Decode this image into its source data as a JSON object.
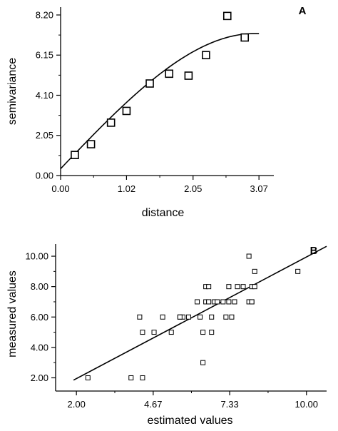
{
  "chart_data": [
    {
      "type": "scatter",
      "panel_label": "A",
      "xlabel": "distance",
      "ylabel": "semivariance",
      "xlim": [
        0,
        3.3
      ],
      "ylim": [
        0,
        8.6
      ],
      "xticks": [
        0,
        1.02,
        2.05,
        3.07
      ],
      "xtick_labels": [
        "0.00",
        "1.02",
        "2.05",
        "3.07"
      ],
      "yticks": [
        0,
        2.05,
        4.1,
        6.15,
        8.2
      ],
      "ytick_labels": [
        "0.00",
        "2.05",
        "4.10",
        "6.15",
        "8.20"
      ],
      "grid": false,
      "legend": "none",
      "points": {
        "x": [
          0.22,
          0.47,
          0.78,
          1.02,
          1.38,
          1.68,
          1.98,
          2.25,
          2.58,
          2.85
        ],
        "y": [
          1.05,
          1.6,
          2.7,
          3.3,
          4.7,
          5.2,
          5.1,
          6.15,
          8.15,
          7.05
        ]
      },
      "fit_curve": {
        "type": "spherical",
        "nugget": 0.35,
        "sill": 7.25,
        "range": 3.0
      },
      "marker": "open-square"
    },
    {
      "type": "scatter",
      "panel_label": "B",
      "xlabel": "estimated values",
      "ylabel": "measured values",
      "xlim": [
        1.5,
        10.7
      ],
      "ylim": [
        1.6,
        10.8
      ],
      "xticks": [
        2.0,
        4.67,
        7.33,
        10.0
      ],
      "xtick_labels": [
        "2.00",
        "4.67",
        "7.33",
        "10.00"
      ],
      "yticks": [
        2,
        4,
        6,
        8,
        10
      ],
      "ytick_labels": [
        "2.00",
        "4.00",
        "6.00",
        "8.00",
        "10.00"
      ],
      "grid": false,
      "legend": "none",
      "points": {
        "x": [
          2.4,
          3.9,
          4.3,
          4.2,
          4.3,
          4.7,
          5.0,
          5.3,
          5.6,
          5.9,
          5.7,
          5.6,
          6.2,
          6.4,
          6.5,
          6.6,
          6.3,
          6.5,
          6.6,
          6.7,
          6.8,
          6.6,
          6.9,
          6.4,
          6.7,
          7.2,
          7.4,
          7.5,
          7.3,
          7.3,
          7.1,
          7.6,
          7.8,
          8.0,
          8.1,
          8.0,
          8.1,
          8.2,
          8.1,
          8.2,
          9.7
        ],
        "y": [
          2.0,
          2.0,
          2.0,
          6.0,
          5.0,
          5.0,
          6.0,
          5.0,
          6.0,
          6.0,
          6.0,
          6.0,
          7.0,
          5.0,
          7.0,
          7.0,
          6.0,
          8.0,
          8.0,
          5.0,
          7.0,
          7.0,
          7.0,
          3.0,
          6.0,
          6.0,
          6.0,
          7.0,
          7.0,
          8.0,
          7.0,
          8.0,
          8.0,
          10.0,
          8.0,
          7.0,
          7.0,
          9.0,
          7.0,
          8.0,
          9.0
        ]
      },
      "fit_line": {
        "slope": 1.0,
        "intercept": -0.05
      },
      "marker": "open-square"
    }
  ]
}
